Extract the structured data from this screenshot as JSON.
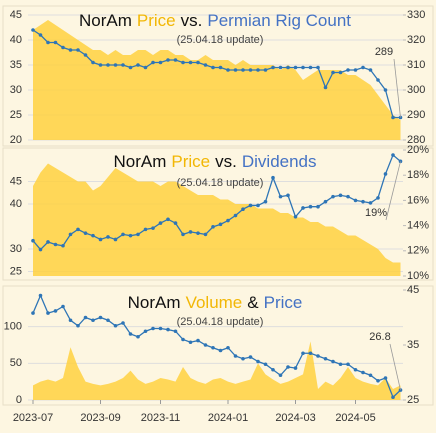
{
  "chart_data": [
    {
      "type": "combo",
      "title": [
        {
          "text": "NorAm",
          "color": "#111111"
        },
        {
          "text": "Price",
          "color": "#f2b705"
        },
        {
          "text": "vs.",
          "color": "#111111"
        },
        {
          "text": "Permian Rig Count",
          "color": "#4472c4"
        }
      ],
      "subtitle": "(25.04.18 update)",
      "annotation": "289",
      "ylim": [
        20,
        45
      ],
      "yticks": [
        20,
        25,
        30,
        35,
        40,
        45
      ],
      "y2lim": [
        280,
        330
      ],
      "y2ticks": [
        280,
        290,
        300,
        310,
        320,
        330
      ],
      "grid": true,
      "series": [
        {
          "type": "area",
          "color": "#ffd13f",
          "values": [
            42,
            43,
            44,
            43,
            42,
            41,
            40,
            39,
            38,
            38,
            37,
            38,
            37,
            37,
            38,
            38,
            37,
            38,
            38,
            37,
            37,
            36,
            36,
            37,
            36,
            36,
            36,
            35,
            36,
            35,
            35,
            35,
            35,
            34,
            35,
            34,
            32,
            33,
            34,
            34,
            34,
            34,
            33,
            33,
            32,
            31,
            29,
            27,
            25,
            24
          ]
        },
        {
          "type": "line",
          "axis": "y2",
          "color": "#2e75b6",
          "values": [
            324,
            322,
            319,
            319,
            317,
            316,
            316,
            314,
            311,
            310,
            310,
            310,
            310,
            309,
            310,
            309,
            311,
            311,
            312,
            312,
            311,
            311,
            311,
            310,
            309,
            309,
            308,
            308,
            308,
            308,
            308,
            308,
            309,
            309,
            309,
            309,
            309,
            309,
            309,
            301,
            307,
            307,
            308,
            308,
            309,
            308,
            304,
            300,
            289,
            289
          ]
        }
      ]
    },
    {
      "type": "combo",
      "title": [
        {
          "text": "NorAm",
          "color": "#111111"
        },
        {
          "text": "Price",
          "color": "#f2b705"
        },
        {
          "text": "vs.",
          "color": "#111111"
        },
        {
          "text": "Dividends",
          "color": "#4472c4"
        }
      ],
      "subtitle": "(25.04.18 update)",
      "annotation": "19%",
      "ylim": [
        24,
        52
      ],
      "yticks": [
        25,
        30,
        40,
        45
      ],
      "y2lim": [
        10,
        20
      ],
      "y2ticks": [
        {
          "value": 10,
          "label": "10%"
        },
        {
          "value": 12,
          "label": "12%"
        },
        {
          "value": 14,
          "label": "14%"
        },
        {
          "value": 16,
          "label": "16%"
        },
        {
          "value": 18,
          "label": "18%"
        },
        {
          "value": 20,
          "label": "20%"
        }
      ],
      "grid": true,
      "series": [
        {
          "type": "area",
          "color": "#ffd13f",
          "values": [
            44,
            47,
            49,
            48,
            47,
            46,
            45,
            45,
            43,
            44,
            46,
            48,
            47,
            46,
            45,
            45,
            45,
            44,
            45,
            45,
            44,
            43,
            42,
            42,
            42,
            41,
            41,
            40,
            40,
            40,
            39,
            39,
            39,
            38,
            38,
            37,
            37,
            36,
            36,
            35,
            35,
            34,
            33,
            33,
            32,
            31,
            30,
            28,
            27,
            27
          ]
        },
        {
          "type": "line",
          "axis": "y2",
          "color": "#2e75b6",
          "values": [
            12.8,
            12.1,
            12.7,
            12.5,
            12.4,
            13.3,
            13.7,
            13.4,
            13.2,
            12.9,
            13.1,
            12.9,
            13.3,
            13.2,
            13.3,
            13.7,
            13.8,
            14.2,
            14.5,
            14.2,
            13.3,
            13.5,
            13.4,
            13.3,
            13.9,
            14.1,
            14.4,
            14.8,
            15.3,
            15.6,
            15.6,
            15.9,
            17.8,
            16.3,
            16.4,
            14.7,
            15.4,
            15.5,
            15.5,
            15.9,
            16.3,
            16.4,
            16.3,
            16.0,
            15.9,
            15.8,
            16.2,
            18.1,
            19.6,
            19.1
          ]
        }
      ]
    },
    {
      "type": "combo",
      "title": [
        {
          "text": "NorAm",
          "color": "#111111"
        },
        {
          "text": "Volume",
          "color": "#f2b705"
        },
        {
          "text": "&",
          "color": "#111111"
        },
        {
          "text": "Price",
          "color": "#4472c4"
        }
      ],
      "subtitle": "(25.04.18 update)",
      "annotation": "26.8",
      "categories": [
        "2023-07",
        null,
        null,
        null,
        null,
        null,
        null,
        null,
        null,
        "2023-09",
        null,
        null,
        null,
        null,
        null,
        null,
        null,
        "2023-11",
        null,
        null,
        null,
        null,
        null,
        null,
        null,
        null,
        "2024-01",
        null,
        null,
        null,
        null,
        null,
        null,
        null,
        null,
        "2024-03",
        null,
        null,
        null,
        null,
        null,
        null,
        null,
        "2024-05",
        null,
        null,
        null,
        null,
        null,
        null
      ],
      "ylim": [
        0,
        150
      ],
      "yticks": [
        0,
        50,
        100
      ],
      "y2lim": [
        25,
        45
      ],
      "y2ticks": [
        25,
        35,
        45
      ],
      "grid": true,
      "series": [
        {
          "type": "area",
          "color": "#ffd13f",
          "values": [
            20,
            25,
            28,
            25,
            30,
            72,
            45,
            25,
            22,
            20,
            22,
            25,
            30,
            40,
            28,
            22,
            25,
            30,
            28,
            25,
            45,
            30,
            25,
            22,
            28,
            30,
            25,
            22,
            25,
            28,
            50,
            35,
            28,
            22,
            25,
            30,
            35,
            80,
            15,
            25,
            20,
            30,
            45,
            30,
            25,
            22,
            20,
            30,
            15,
            20
          ]
        },
        {
          "type": "line",
          "axis": "y2",
          "color": "#2e75b6",
          "values": [
            40.8,
            44.0,
            40.8,
            41.2,
            42.0,
            39.5,
            38.5,
            40.0,
            39.5,
            40.0,
            39.5,
            38.5,
            39.0,
            37.0,
            36.5,
            37.5,
            38.0,
            38.0,
            37.8,
            37.5,
            36.0,
            35.5,
            35.8,
            35.0,
            34.5,
            34.0,
            34.5,
            33.0,
            32.5,
            32.8,
            32.0,
            31.5,
            30.5,
            29.5,
            31.0,
            30.8,
            33.5,
            33.5,
            33.0,
            32.5,
            32.0,
            31.5,
            31.5,
            30.5,
            30.0,
            29.5,
            28.5,
            29.0,
            25.5,
            26.8
          ]
        }
      ]
    }
  ]
}
